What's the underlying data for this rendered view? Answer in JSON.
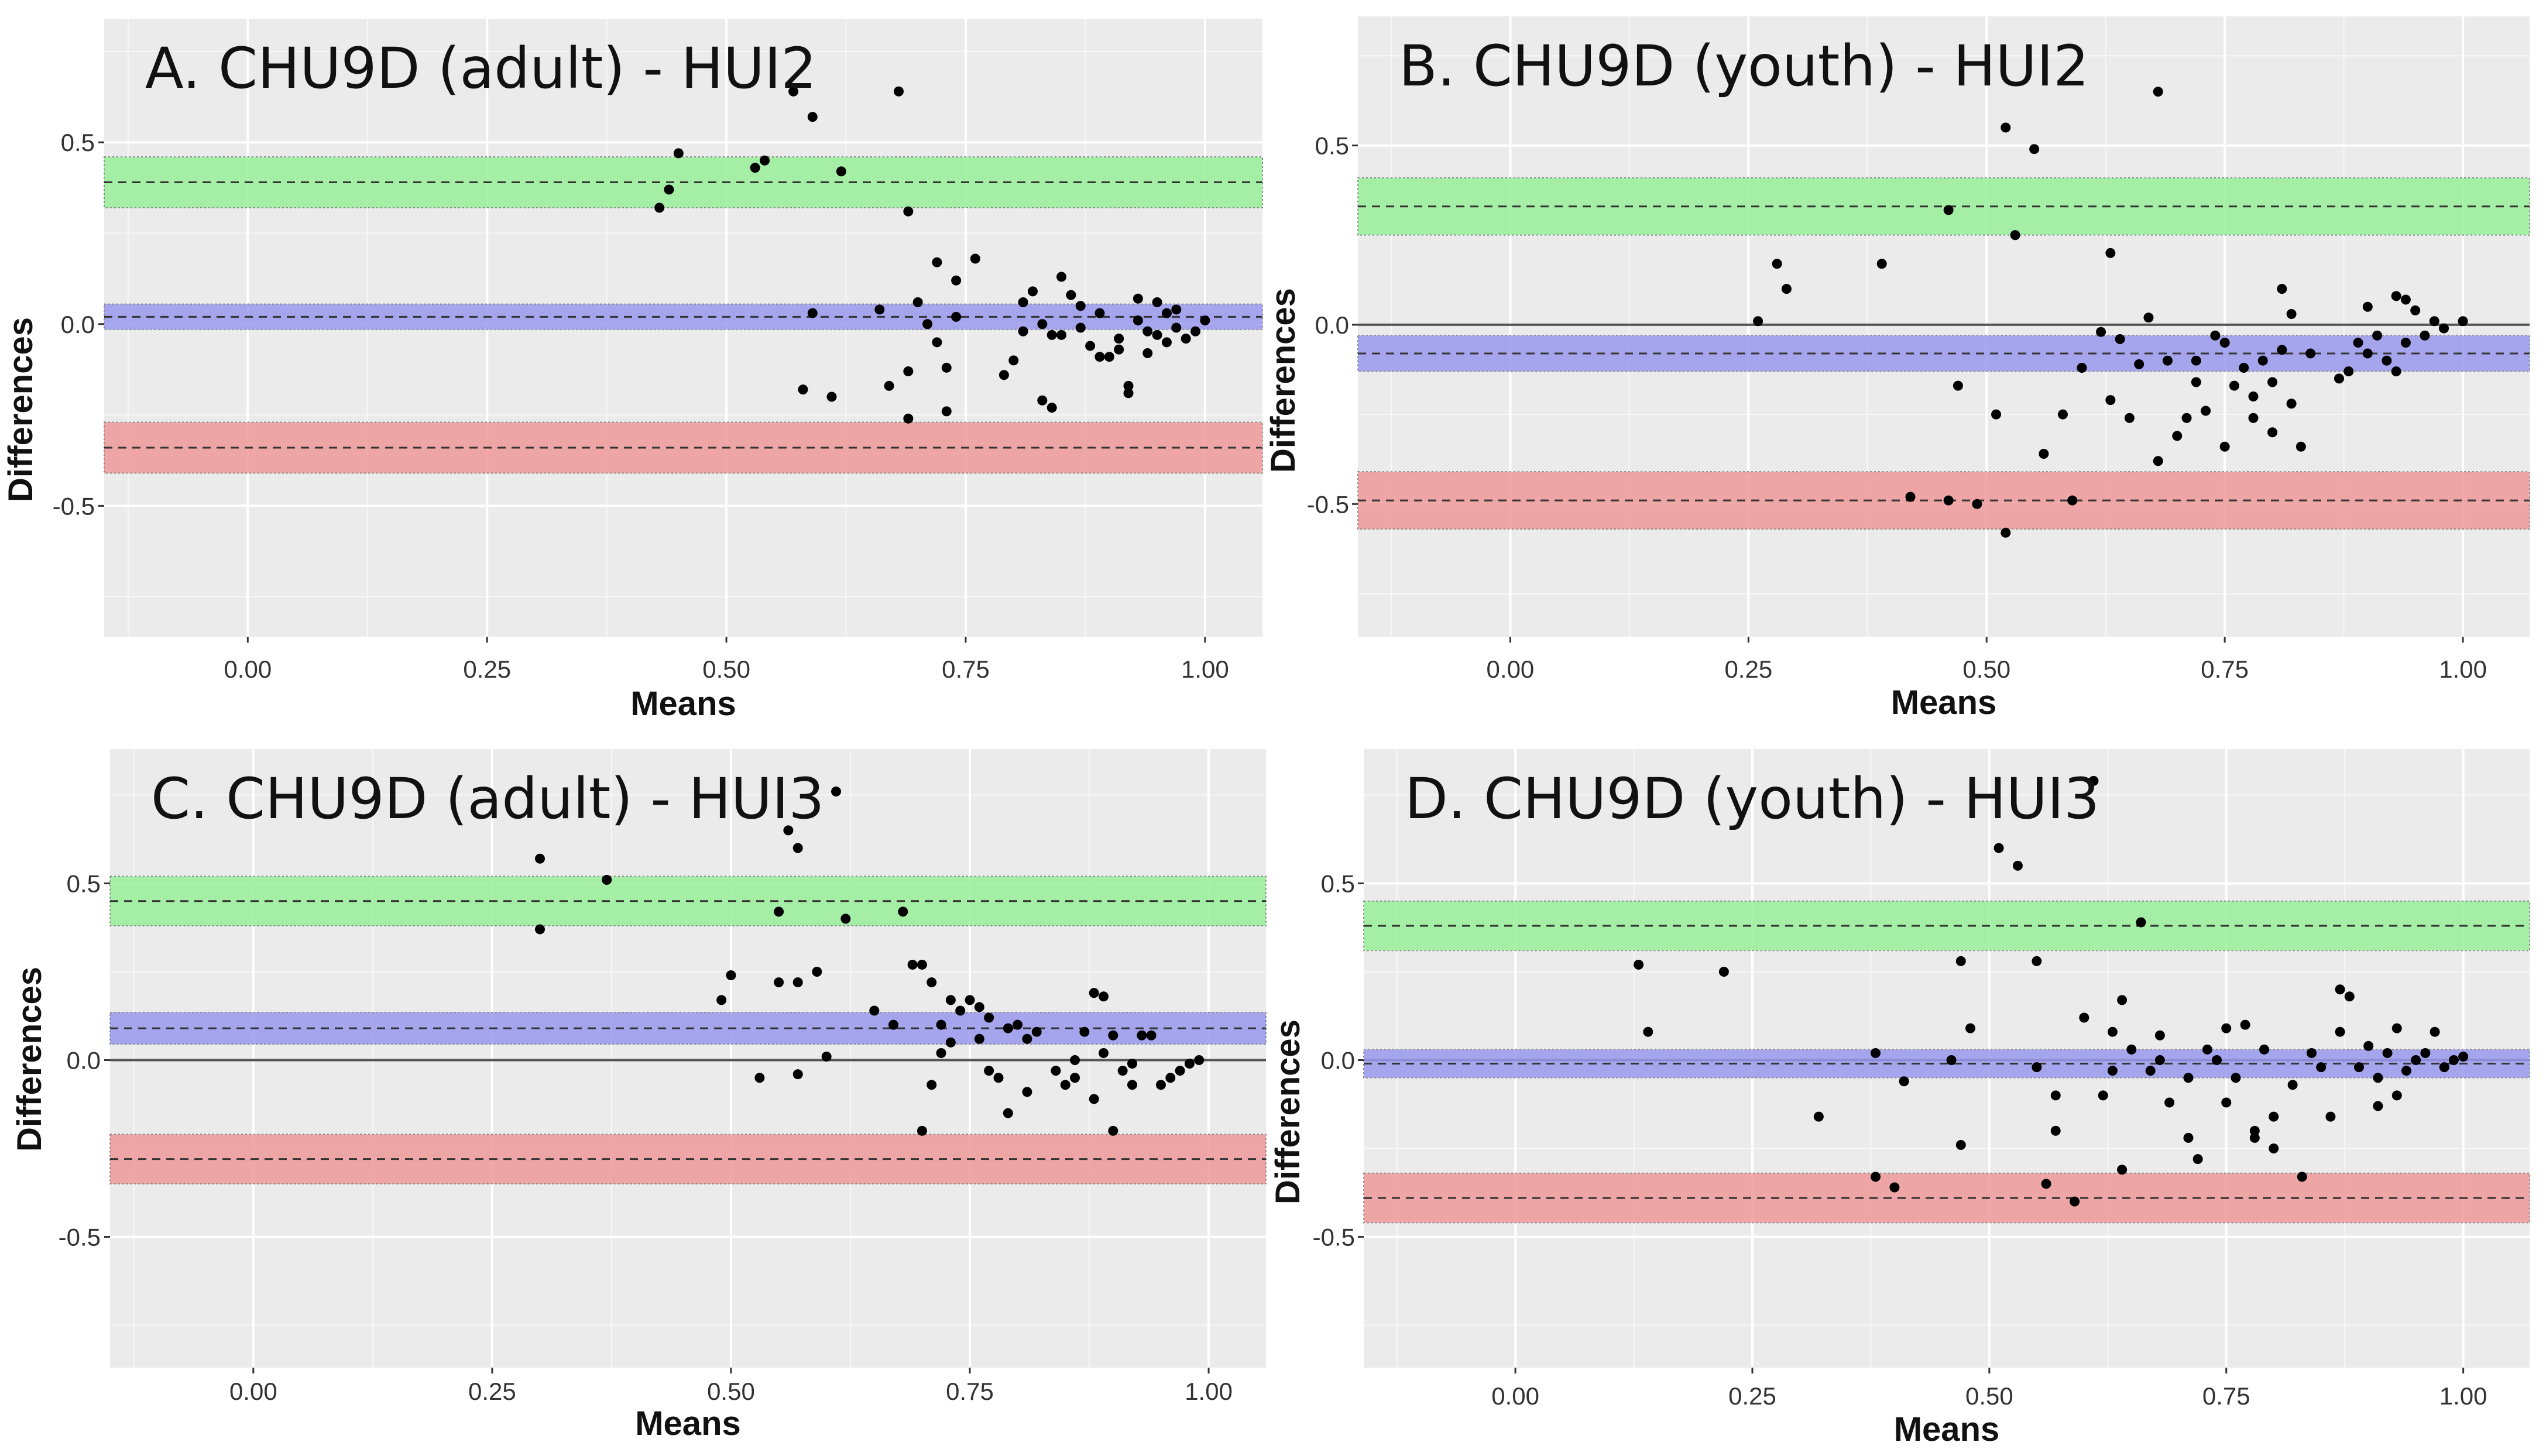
{
  "chart_data": [
    {
      "type": "scatter",
      "title": "A. CHU9D (adult) - HUI2",
      "xlabel": "Means",
      "ylabel": "Differences",
      "xlim": [
        -0.15,
        1.06
      ],
      "ylim": [
        -0.86,
        0.84
      ],
      "x_ticks": [
        "0.00",
        "0.25",
        "0.50",
        "0.75",
        "1.00"
      ],
      "y_ticks": [
        "0.5",
        "0.0",
        "-0.5"
      ],
      "zero_line": false,
      "grid": true,
      "colors": {
        "upper_loa": "#99ee99",
        "mean_diff": "#9999ee",
        "lower_loa": "#ee9999",
        "points": "#000000",
        "panel": "#ebebeb"
      },
      "upper_loa": {
        "value": 0.39,
        "ci": [
          0.32,
          0.46
        ]
      },
      "mean_difference": {
        "value": 0.02,
        "ci": [
          -0.015,
          0.055
        ]
      },
      "lower_loa": {
        "value": -0.34,
        "ci": [
          -0.41,
          -0.27
        ]
      },
      "points": [
        [
          0.43,
          0.32
        ],
        [
          0.44,
          0.37
        ],
        [
          0.45,
          0.47
        ],
        [
          0.53,
          0.43
        ],
        [
          0.54,
          0.45
        ],
        [
          0.57,
          0.64
        ],
        [
          0.59,
          0.57
        ],
        [
          0.62,
          0.42
        ],
        [
          0.68,
          0.64
        ],
        [
          0.69,
          0.31
        ],
        [
          0.58,
          -0.18
        ],
        [
          0.59,
          0.03
        ],
        [
          0.61,
          -0.2
        ],
        [
          0.66,
          0.04
        ],
        [
          0.67,
          -0.17
        ],
        [
          0.69,
          -0.26
        ],
        [
          0.69,
          -0.13
        ],
        [
          0.7,
          0.06
        ],
        [
          0.71,
          0.0
        ],
        [
          0.72,
          0.17
        ],
        [
          0.72,
          -0.05
        ],
        [
          0.73,
          -0.24
        ],
        [
          0.73,
          -0.12
        ],
        [
          0.74,
          0.12
        ],
        [
          0.74,
          0.02
        ],
        [
          0.76,
          0.18
        ],
        [
          0.79,
          -0.14
        ],
        [
          0.8,
          -0.1
        ],
        [
          0.81,
          0.06
        ],
        [
          0.81,
          -0.02
        ],
        [
          0.82,
          0.09
        ],
        [
          0.83,
          -0.21
        ],
        [
          0.83,
          0.0
        ],
        [
          0.84,
          -0.03
        ],
        [
          0.84,
          -0.23
        ],
        [
          0.85,
          0.13
        ],
        [
          0.85,
          -0.03
        ],
        [
          0.86,
          0.08
        ],
        [
          0.87,
          0.05
        ],
        [
          0.87,
          -0.01
        ],
        [
          0.88,
          -0.06
        ],
        [
          0.89,
          -0.09
        ],
        [
          0.89,
          0.03
        ],
        [
          0.9,
          -0.09
        ],
        [
          0.91,
          -0.04
        ],
        [
          0.91,
          -0.07
        ],
        [
          0.92,
          -0.19
        ],
        [
          0.92,
          -0.17
        ],
        [
          0.93,
          0.07
        ],
        [
          0.93,
          0.01
        ],
        [
          0.94,
          -0.02
        ],
        [
          0.94,
          -0.08
        ],
        [
          0.95,
          0.06
        ],
        [
          0.95,
          -0.03
        ],
        [
          0.96,
          0.03
        ],
        [
          0.96,
          -0.05
        ],
        [
          0.97,
          -0.01
        ],
        [
          0.97,
          0.04
        ],
        [
          0.98,
          -0.04
        ],
        [
          0.99,
          -0.02
        ],
        [
          1.0,
          0.01
        ]
      ]
    },
    {
      "type": "scatter",
      "title": "B. CHU9D (youth) - HUI2",
      "xlabel": "Means",
      "ylabel": "Differences",
      "xlim": [
        -0.16,
        1.07
      ],
      "ylim": [
        -0.87,
        0.86
      ],
      "x_ticks": [
        "0.00",
        "0.25",
        "0.50",
        "0.75",
        "1.00"
      ],
      "y_ticks": [
        "0.5",
        "0.0",
        "-0.5"
      ],
      "zero_line": true,
      "grid": true,
      "colors": {
        "upper_loa": "#99ee99",
        "mean_diff": "#9999ee",
        "lower_loa": "#ee9999",
        "points": "#000000",
        "panel": "#ebebeb"
      },
      "upper_loa": {
        "value": 0.33,
        "ci": [
          0.25,
          0.41
        ]
      },
      "mean_difference": {
        "value": -0.08,
        "ci": [
          -0.13,
          -0.03
        ]
      },
      "lower_loa": {
        "value": -0.49,
        "ci": [
          -0.57,
          -0.41
        ]
      },
      "points": [
        [
          0.26,
          0.01
        ],
        [
          0.28,
          0.17
        ],
        [
          0.29,
          0.1
        ],
        [
          0.39,
          0.17
        ],
        [
          0.42,
          -0.48
        ],
        [
          0.46,
          -0.49
        ],
        [
          0.46,
          0.32
        ],
        [
          0.47,
          -0.17
        ],
        [
          0.49,
          -0.5
        ],
        [
          0.51,
          -0.25
        ],
        [
          0.52,
          -0.58
        ],
        [
          0.52,
          0.55
        ],
        [
          0.53,
          0.25
        ],
        [
          0.55,
          0.49
        ],
        [
          0.56,
          -0.36
        ],
        [
          0.58,
          -0.25
        ],
        [
          0.59,
          -0.49
        ],
        [
          0.6,
          -0.12
        ],
        [
          0.62,
          -0.02
        ],
        [
          0.63,
          -0.21
        ],
        [
          0.63,
          0.2
        ],
        [
          0.64,
          -0.04
        ],
        [
          0.65,
          -0.26
        ],
        [
          0.66,
          -0.11
        ],
        [
          0.67,
          0.02
        ],
        [
          0.68,
          -0.38
        ],
        [
          0.68,
          0.65
        ],
        [
          0.69,
          -0.1
        ],
        [
          0.7,
          -0.31
        ],
        [
          0.71,
          -0.26
        ],
        [
          0.72,
          -0.16
        ],
        [
          0.72,
          -0.1
        ],
        [
          0.73,
          -0.24
        ],
        [
          0.74,
          -0.03
        ],
        [
          0.75,
          -0.05
        ],
        [
          0.75,
          -0.34
        ],
        [
          0.76,
          -0.17
        ],
        [
          0.77,
          -0.12
        ],
        [
          0.78,
          -0.2
        ],
        [
          0.78,
          -0.26
        ],
        [
          0.79,
          -0.1
        ],
        [
          0.8,
          -0.16
        ],
        [
          0.8,
          -0.3
        ],
        [
          0.81,
          0.1
        ],
        [
          0.81,
          -0.07
        ],
        [
          0.82,
          0.03
        ],
        [
          0.82,
          -0.22
        ],
        [
          0.83,
          -0.34
        ],
        [
          0.84,
          -0.08
        ],
        [
          0.87,
          -0.15
        ],
        [
          0.88,
          -0.13
        ],
        [
          0.89,
          -0.05
        ],
        [
          0.9,
          0.05
        ],
        [
          0.9,
          -0.08
        ],
        [
          0.91,
          -0.03
        ],
        [
          0.92,
          -0.1
        ],
        [
          0.93,
          0.08
        ],
        [
          0.93,
          -0.13
        ],
        [
          0.94,
          0.07
        ],
        [
          0.94,
          -0.05
        ],
        [
          0.95,
          0.04
        ],
        [
          0.96,
          -0.03
        ],
        [
          0.97,
          0.01
        ],
        [
          0.98,
          -0.01
        ],
        [
          1.0,
          0.01
        ]
      ]
    },
    {
      "type": "scatter",
      "title": "C. CHU9D (adult) - HUI3",
      "xlabel": "Means",
      "ylabel": "Differences",
      "xlim": [
        -0.15,
        1.06
      ],
      "ylim": [
        -0.87,
        0.88
      ],
      "x_ticks": [
        "0.00",
        "0.25",
        "0.50",
        "0.75",
        "1.00"
      ],
      "y_ticks": [
        "0.5",
        "0.0",
        "-0.5"
      ],
      "zero_line": true,
      "grid": true,
      "colors": {
        "upper_loa": "#99ee99",
        "mean_diff": "#9999ee",
        "lower_loa": "#ee9999",
        "points": "#000000",
        "panel": "#ebebeb"
      },
      "upper_loa": {
        "value": 0.45,
        "ci": [
          0.38,
          0.52
        ]
      },
      "mean_difference": {
        "value": 0.09,
        "ci": [
          0.045,
          0.135
        ]
      },
      "lower_loa": {
        "value": -0.28,
        "ci": [
          -0.35,
          -0.21
        ]
      },
      "points": [
        [
          0.3,
          0.37
        ],
        [
          0.3,
          0.57
        ],
        [
          0.37,
          0.51
        ],
        [
          0.49,
          0.17
        ],
        [
          0.5,
          0.24
        ],
        [
          0.53,
          -0.05
        ],
        [
          0.55,
          0.42
        ],
        [
          0.55,
          0.22
        ],
        [
          0.56,
          0.65
        ],
        [
          0.57,
          0.6
        ],
        [
          0.57,
          0.22
        ],
        [
          0.57,
          -0.04
        ],
        [
          0.59,
          0.25
        ],
        [
          0.6,
          0.01
        ],
        [
          0.61,
          0.76
        ],
        [
          0.62,
          0.4
        ],
        [
          0.65,
          0.14
        ],
        [
          0.67,
          0.1
        ],
        [
          0.68,
          0.42
        ],
        [
          0.69,
          0.27
        ],
        [
          0.7,
          0.27
        ],
        [
          0.7,
          -0.2
        ],
        [
          0.71,
          0.22
        ],
        [
          0.71,
          -0.07
        ],
        [
          0.72,
          0.1
        ],
        [
          0.72,
          0.02
        ],
        [
          0.73,
          0.17
        ],
        [
          0.73,
          0.05
        ],
        [
          0.74,
          0.14
        ],
        [
          0.75,
          0.17
        ],
        [
          0.76,
          0.15
        ],
        [
          0.76,
          0.06
        ],
        [
          0.77,
          -0.03
        ],
        [
          0.77,
          0.12
        ],
        [
          0.78,
          -0.05
        ],
        [
          0.79,
          0.09
        ],
        [
          0.79,
          -0.15
        ],
        [
          0.8,
          0.1
        ],
        [
          0.81,
          0.06
        ],
        [
          0.81,
          -0.09
        ],
        [
          0.82,
          0.08
        ],
        [
          0.84,
          -0.03
        ],
        [
          0.85,
          -0.07
        ],
        [
          0.86,
          -0.05
        ],
        [
          0.86,
          0.0
        ],
        [
          0.87,
          0.08
        ],
        [
          0.88,
          0.19
        ],
        [
          0.88,
          -0.11
        ],
        [
          0.89,
          0.18
        ],
        [
          0.89,
          0.02
        ],
        [
          0.9,
          -0.2
        ],
        [
          0.9,
          0.07
        ],
        [
          0.91,
          -0.03
        ],
        [
          0.92,
          -0.01
        ],
        [
          0.92,
          -0.07
        ],
        [
          0.93,
          0.07
        ],
        [
          0.94,
          0.07
        ],
        [
          0.95,
          -0.07
        ],
        [
          0.96,
          -0.05
        ],
        [
          0.97,
          -0.03
        ],
        [
          0.98,
          -0.01
        ],
        [
          0.99,
          0.0
        ]
      ]
    },
    {
      "type": "scatter",
      "title": "D. CHU9D (youth) - HUI3",
      "xlabel": "Means",
      "ylabel": "Differences",
      "xlim": [
        -0.16,
        1.07
      ],
      "ylim": [
        -0.87,
        0.88
      ],
      "x_ticks": [
        "0.00",
        "0.25",
        "0.50",
        "0.75",
        "1.00"
      ],
      "y_ticks": [
        "0.5",
        "0.0",
        "-0.5"
      ],
      "zero_line": true,
      "grid": true,
      "colors": {
        "upper_loa": "#99ee99",
        "mean_diff": "#9999ee",
        "lower_loa": "#ee9999",
        "points": "#000000",
        "panel": "#ebebeb"
      },
      "upper_loa": {
        "value": 0.38,
        "ci": [
          0.31,
          0.45
        ]
      },
      "mean_difference": {
        "value": -0.01,
        "ci": [
          -0.05,
          0.03
        ]
      },
      "lower_loa": {
        "value": -0.39,
        "ci": [
          -0.46,
          -0.32
        ]
      },
      "points": [
        [
          0.13,
          0.27
        ],
        [
          0.14,
          0.08
        ],
        [
          0.22,
          0.25
        ],
        [
          0.32,
          -0.16
        ],
        [
          0.38,
          0.02
        ],
        [
          0.38,
          -0.33
        ],
        [
          0.4,
          -0.36
        ],
        [
          0.41,
          -0.06
        ],
        [
          0.46,
          0.0
        ],
        [
          0.47,
          -0.24
        ],
        [
          0.47,
          0.28
        ],
        [
          0.48,
          0.09
        ],
        [
          0.51,
          0.6
        ],
        [
          0.53,
          0.55
        ],
        [
          0.55,
          0.28
        ],
        [
          0.55,
          -0.02
        ],
        [
          0.56,
          -0.35
        ],
        [
          0.57,
          -0.1
        ],
        [
          0.57,
          -0.2
        ],
        [
          0.59,
          -0.4
        ],
        [
          0.6,
          0.12
        ],
        [
          0.61,
          0.79
        ],
        [
          0.62,
          -0.1
        ],
        [
          0.63,
          -0.03
        ],
        [
          0.63,
          0.08
        ],
        [
          0.64,
          -0.31
        ],
        [
          0.64,
          0.17
        ],
        [
          0.65,
          0.03
        ],
        [
          0.66,
          0.39
        ],
        [
          0.67,
          -0.03
        ],
        [
          0.68,
          0.07
        ],
        [
          0.68,
          0.0
        ],
        [
          0.69,
          -0.12
        ],
        [
          0.71,
          -0.05
        ],
        [
          0.71,
          -0.22
        ],
        [
          0.72,
          -0.28
        ],
        [
          0.73,
          0.03
        ],
        [
          0.74,
          0.0
        ],
        [
          0.75,
          -0.12
        ],
        [
          0.75,
          0.09
        ],
        [
          0.76,
          -0.05
        ],
        [
          0.77,
          0.1
        ],
        [
          0.78,
          -0.2
        ],
        [
          0.78,
          -0.22
        ],
        [
          0.79,
          0.03
        ],
        [
          0.8,
          -0.16
        ],
        [
          0.8,
          -0.25
        ],
        [
          0.82,
          -0.07
        ],
        [
          0.83,
          -0.33
        ],
        [
          0.84,
          0.02
        ],
        [
          0.85,
          -0.02
        ],
        [
          0.86,
          -0.16
        ],
        [
          0.87,
          0.08
        ],
        [
          0.87,
          0.2
        ],
        [
          0.88,
          0.18
        ],
        [
          0.89,
          -0.02
        ],
        [
          0.9,
          0.04
        ],
        [
          0.91,
          -0.05
        ],
        [
          0.91,
          -0.13
        ],
        [
          0.92,
          0.02
        ],
        [
          0.93,
          0.09
        ],
        [
          0.93,
          -0.1
        ],
        [
          0.94,
          -0.03
        ],
        [
          0.95,
          0.0
        ],
        [
          0.96,
          0.02
        ],
        [
          0.97,
          0.08
        ],
        [
          0.98,
          -0.02
        ],
        [
          0.99,
          0.0
        ],
        [
          1.0,
          0.01
        ]
      ]
    }
  ]
}
